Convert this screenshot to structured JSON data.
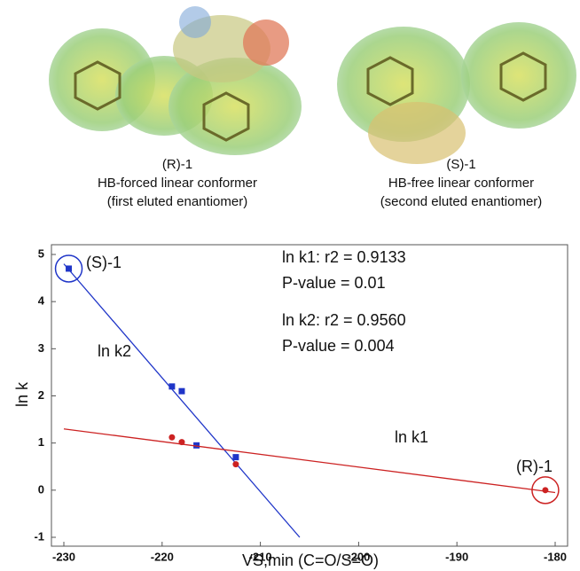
{
  "molecules": [
    {
      "label": "(R)-1",
      "description": "HB-forced linear conformer",
      "note": "(first eluted enantiomer)"
    },
    {
      "label": "(S)-1",
      "description": "HB-free linear conformer",
      "note": "(second eluted enantiomer)"
    }
  ],
  "chart_data": {
    "type": "scatter",
    "x_label": "VS,min (C=O/S=O)",
    "y_label": "ln k",
    "xlim": [
      -230,
      -180
    ],
    "xticks": [
      -230,
      -220,
      -210,
      -200,
      -190,
      -180
    ],
    "ylim": [
      -1,
      5
    ],
    "yticks": [
      -1,
      0,
      1,
      2,
      3,
      4,
      5
    ],
    "series": [
      {
        "name": "ln k2",
        "color": "#1f35c8",
        "x": [
          -229.5,
          -219,
          -218,
          -216.5,
          -212.5
        ],
        "values": [
          4.7,
          2.2,
          2.1,
          0.95,
          0.7
        ],
        "fit": {
          "x": [
            -230,
            -206
          ],
          "y": [
            4.8,
            -1.0
          ]
        }
      },
      {
        "name": "ln k1",
        "color": "#cc2222",
        "x": [
          -219,
          -218,
          -212.5,
          -181
        ],
        "values": [
          1.12,
          1.02,
          0.55,
          0
        ],
        "fit": {
          "x": [
            -230,
            -180
          ],
          "y": [
            1.3,
            -0.05
          ]
        }
      }
    ],
    "annotations": [
      "(S)-1",
      "(R)-1",
      "ln k1: r2 = 0.9133",
      "P-value = 0.01",
      "ln k2: r2 = 0.9560",
      "P-value = 0.004"
    ]
  }
}
